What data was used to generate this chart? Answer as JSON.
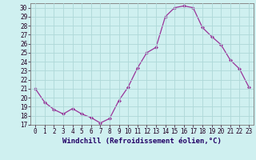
{
  "x": [
    0,
    1,
    2,
    3,
    4,
    5,
    6,
    7,
    8,
    9,
    10,
    11,
    12,
    13,
    14,
    15,
    16,
    17,
    18,
    19,
    20,
    21,
    22,
    23
  ],
  "y": [
    21.0,
    19.5,
    18.7,
    18.2,
    18.8,
    18.2,
    17.8,
    17.2,
    17.7,
    19.7,
    21.2,
    23.3,
    25.0,
    25.6,
    29.0,
    30.0,
    30.2,
    30.0,
    27.8,
    26.8,
    25.9,
    24.2,
    23.2,
    21.2
  ],
  "line_color": "#993399",
  "bg_color": "#cff0f0",
  "grid_color": "#aed8d8",
  "xlabel": "Windchill (Refroidissement éolien,°C)",
  "ylim": [
    17,
    30.5
  ],
  "xlim": [
    -0.5,
    23.5
  ],
  "yticks": [
    17,
    18,
    19,
    20,
    21,
    22,
    23,
    24,
    25,
    26,
    27,
    28,
    29,
    30
  ],
  "xticks": [
    0,
    1,
    2,
    3,
    4,
    5,
    6,
    7,
    8,
    9,
    10,
    11,
    12,
    13,
    14,
    15,
    16,
    17,
    18,
    19,
    20,
    21,
    22,
    23
  ],
  "tick_fontsize": 5.5,
  "xlabel_fontsize": 6.5,
  "marker_size": 2.0,
  "line_width": 0.9
}
